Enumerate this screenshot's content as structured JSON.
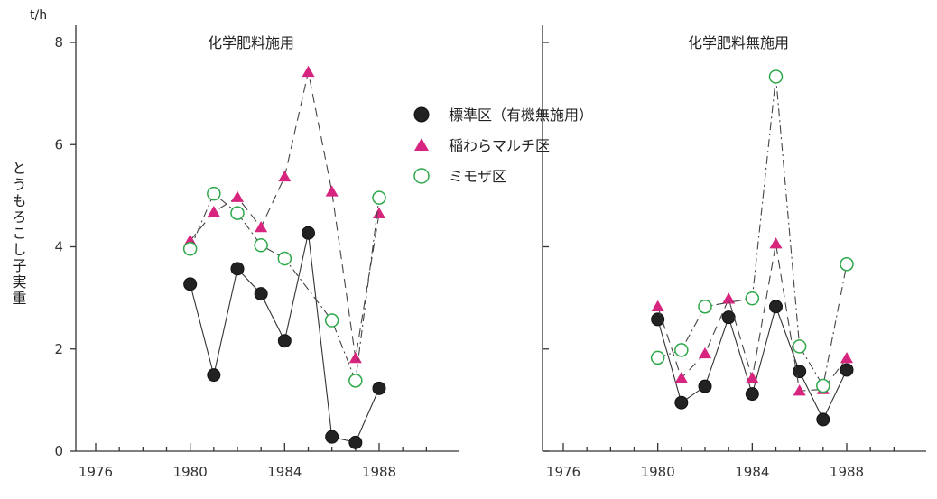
{
  "chart_data": {
    "type": "line",
    "unit": "t/h",
    "ylabel": "とうもろこし子実重",
    "legend": {
      "placement": "center-top",
      "entries": [
        {
          "label": "標準区（有機無施用）",
          "marker": "filled-circle",
          "color": "#222222"
        },
        {
          "label": "稲わらマルチ区",
          "marker": "triangle",
          "color": "#d6247f"
        },
        {
          "label": "ミモザ区",
          "marker": "open-circle",
          "color": "#2ea84a"
        }
      ]
    },
    "panels": [
      {
        "title": "化学肥料施用",
        "xlim": [
          1975,
          1991
        ],
        "ylim": [
          0,
          8
        ],
        "xticks": [
          1976,
          1980,
          1984,
          1988
        ],
        "yticks": [
          0,
          2,
          4,
          6,
          8
        ],
        "x": [
          1980,
          1981,
          1982,
          1983,
          1984,
          1985,
          1986,
          1987,
          1988
        ],
        "series": [
          {
            "name": "標準区（有機無施用）",
            "marker": "filled-circle",
            "color": "#222222",
            "line": "solid",
            "values": [
              3.27,
              1.49,
              3.57,
              3.08,
              2.16,
              4.27,
              0.28,
              0.17,
              1.23
            ]
          },
          {
            "name": "稲わらマルチ区",
            "marker": "triangle",
            "color": "#d6247f",
            "line": "dashed",
            "values": [
              4.12,
              4.68,
              4.97,
              4.38,
              5.37,
              7.42,
              5.08,
              1.82,
              4.65
            ]
          },
          {
            "name": "ミモザ区",
            "marker": "open-circle",
            "color": "#2ea84a",
            "line": "dashdot",
            "values": [
              3.96,
              5.04,
              4.66,
              4.03,
              3.77,
              null,
              2.56,
              1.38,
              4.96
            ]
          }
        ]
      },
      {
        "title": "化学肥料無施用",
        "xlim": [
          1975,
          1991
        ],
        "ylim": [
          0,
          8
        ],
        "xticks": [
          1976,
          1980,
          1984,
          1988
        ],
        "yticks": [],
        "x": [
          1980,
          1981,
          1982,
          1983,
          1984,
          1985,
          1986,
          1987,
          1988
        ],
        "series": [
          {
            "name": "標準区（有機無施用）",
            "marker": "filled-circle",
            "color": "#222222",
            "line": "solid",
            "values": [
              2.58,
              0.95,
              1.27,
              2.62,
              1.12,
              2.83,
              1.56,
              0.62,
              1.59
            ]
          },
          {
            "name": "稲わらマルチ区",
            "marker": "triangle",
            "color": "#d6247f",
            "line": "dashed",
            "values": [
              2.83,
              1.43,
              1.91,
              2.98,
              1.43,
              4.06,
              1.18,
              1.21,
              1.82
            ]
          },
          {
            "name": "ミモザ区",
            "marker": "open-circle",
            "color": "#2ea84a",
            "line": "dashdot",
            "values": [
              1.83,
              1.98,
              2.83,
              null,
              2.99,
              7.33,
              2.05,
              1.28,
              3.66
            ]
          }
        ]
      }
    ]
  }
}
